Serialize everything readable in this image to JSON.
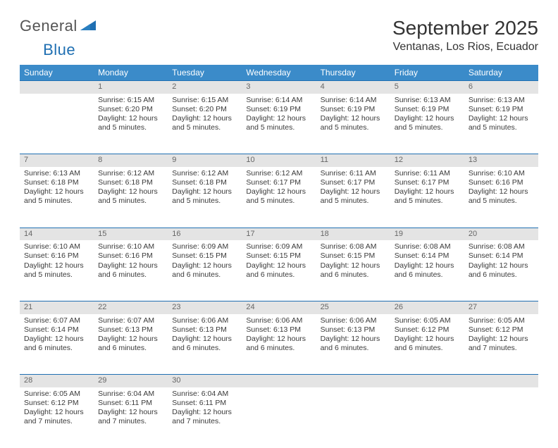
{
  "brand": {
    "word1": "General",
    "word2": "Blue"
  },
  "title": {
    "month": "September 2025",
    "location": "Ventanas, Los Rios, Ecuador"
  },
  "colors": {
    "header_bg": "#3b8bc9",
    "header_text": "#ffffff",
    "daynum_bg": "#e4e4e4",
    "daynum_text": "#666666",
    "row_border": "#1f6fb2",
    "body_text": "#3a3a3a",
    "brand_gray": "#555555",
    "brand_blue": "#1f6fb2"
  },
  "day_headers": [
    "Sunday",
    "Monday",
    "Tuesday",
    "Wednesday",
    "Thursday",
    "Friday",
    "Saturday"
  ],
  "weeks": [
    {
      "nums": [
        "",
        "1",
        "2",
        "3",
        "4",
        "5",
        "6"
      ],
      "cells": [
        null,
        {
          "sunrise": "Sunrise: 6:15 AM",
          "sunset": "Sunset: 6:20 PM",
          "day1": "Daylight: 12 hours",
          "day2": "and 5 minutes."
        },
        {
          "sunrise": "Sunrise: 6:15 AM",
          "sunset": "Sunset: 6:20 PM",
          "day1": "Daylight: 12 hours",
          "day2": "and 5 minutes."
        },
        {
          "sunrise": "Sunrise: 6:14 AM",
          "sunset": "Sunset: 6:19 PM",
          "day1": "Daylight: 12 hours",
          "day2": "and 5 minutes."
        },
        {
          "sunrise": "Sunrise: 6:14 AM",
          "sunset": "Sunset: 6:19 PM",
          "day1": "Daylight: 12 hours",
          "day2": "and 5 minutes."
        },
        {
          "sunrise": "Sunrise: 6:13 AM",
          "sunset": "Sunset: 6:19 PM",
          "day1": "Daylight: 12 hours",
          "day2": "and 5 minutes."
        },
        {
          "sunrise": "Sunrise: 6:13 AM",
          "sunset": "Sunset: 6:19 PM",
          "day1": "Daylight: 12 hours",
          "day2": "and 5 minutes."
        }
      ]
    },
    {
      "nums": [
        "7",
        "8",
        "9",
        "10",
        "11",
        "12",
        "13"
      ],
      "cells": [
        {
          "sunrise": "Sunrise: 6:13 AM",
          "sunset": "Sunset: 6:18 PM",
          "day1": "Daylight: 12 hours",
          "day2": "and 5 minutes."
        },
        {
          "sunrise": "Sunrise: 6:12 AM",
          "sunset": "Sunset: 6:18 PM",
          "day1": "Daylight: 12 hours",
          "day2": "and 5 minutes."
        },
        {
          "sunrise": "Sunrise: 6:12 AM",
          "sunset": "Sunset: 6:18 PM",
          "day1": "Daylight: 12 hours",
          "day2": "and 5 minutes."
        },
        {
          "sunrise": "Sunrise: 6:12 AM",
          "sunset": "Sunset: 6:17 PM",
          "day1": "Daylight: 12 hours",
          "day2": "and 5 minutes."
        },
        {
          "sunrise": "Sunrise: 6:11 AM",
          "sunset": "Sunset: 6:17 PM",
          "day1": "Daylight: 12 hours",
          "day2": "and 5 minutes."
        },
        {
          "sunrise": "Sunrise: 6:11 AM",
          "sunset": "Sunset: 6:17 PM",
          "day1": "Daylight: 12 hours",
          "day2": "and 5 minutes."
        },
        {
          "sunrise": "Sunrise: 6:10 AM",
          "sunset": "Sunset: 6:16 PM",
          "day1": "Daylight: 12 hours",
          "day2": "and 5 minutes."
        }
      ]
    },
    {
      "nums": [
        "14",
        "15",
        "16",
        "17",
        "18",
        "19",
        "20"
      ],
      "cells": [
        {
          "sunrise": "Sunrise: 6:10 AM",
          "sunset": "Sunset: 6:16 PM",
          "day1": "Daylight: 12 hours",
          "day2": "and 5 minutes."
        },
        {
          "sunrise": "Sunrise: 6:10 AM",
          "sunset": "Sunset: 6:16 PM",
          "day1": "Daylight: 12 hours",
          "day2": "and 6 minutes."
        },
        {
          "sunrise": "Sunrise: 6:09 AM",
          "sunset": "Sunset: 6:15 PM",
          "day1": "Daylight: 12 hours",
          "day2": "and 6 minutes."
        },
        {
          "sunrise": "Sunrise: 6:09 AM",
          "sunset": "Sunset: 6:15 PM",
          "day1": "Daylight: 12 hours",
          "day2": "and 6 minutes."
        },
        {
          "sunrise": "Sunrise: 6:08 AM",
          "sunset": "Sunset: 6:15 PM",
          "day1": "Daylight: 12 hours",
          "day2": "and 6 minutes."
        },
        {
          "sunrise": "Sunrise: 6:08 AM",
          "sunset": "Sunset: 6:14 PM",
          "day1": "Daylight: 12 hours",
          "day2": "and 6 minutes."
        },
        {
          "sunrise": "Sunrise: 6:08 AM",
          "sunset": "Sunset: 6:14 PM",
          "day1": "Daylight: 12 hours",
          "day2": "and 6 minutes."
        }
      ]
    },
    {
      "nums": [
        "21",
        "22",
        "23",
        "24",
        "25",
        "26",
        "27"
      ],
      "cells": [
        {
          "sunrise": "Sunrise: 6:07 AM",
          "sunset": "Sunset: 6:14 PM",
          "day1": "Daylight: 12 hours",
          "day2": "and 6 minutes."
        },
        {
          "sunrise": "Sunrise: 6:07 AM",
          "sunset": "Sunset: 6:13 PM",
          "day1": "Daylight: 12 hours",
          "day2": "and 6 minutes."
        },
        {
          "sunrise": "Sunrise: 6:06 AM",
          "sunset": "Sunset: 6:13 PM",
          "day1": "Daylight: 12 hours",
          "day2": "and 6 minutes."
        },
        {
          "sunrise": "Sunrise: 6:06 AM",
          "sunset": "Sunset: 6:13 PM",
          "day1": "Daylight: 12 hours",
          "day2": "and 6 minutes."
        },
        {
          "sunrise": "Sunrise: 6:06 AM",
          "sunset": "Sunset: 6:13 PM",
          "day1": "Daylight: 12 hours",
          "day2": "and 6 minutes."
        },
        {
          "sunrise": "Sunrise: 6:05 AM",
          "sunset": "Sunset: 6:12 PM",
          "day1": "Daylight: 12 hours",
          "day2": "and 6 minutes."
        },
        {
          "sunrise": "Sunrise: 6:05 AM",
          "sunset": "Sunset: 6:12 PM",
          "day1": "Daylight: 12 hours",
          "day2": "and 7 minutes."
        }
      ]
    },
    {
      "nums": [
        "28",
        "29",
        "30",
        "",
        "",
        "",
        ""
      ],
      "cells": [
        {
          "sunrise": "Sunrise: 6:05 AM",
          "sunset": "Sunset: 6:12 PM",
          "day1": "Daylight: 12 hours",
          "day2": "and 7 minutes."
        },
        {
          "sunrise": "Sunrise: 6:04 AM",
          "sunset": "Sunset: 6:11 PM",
          "day1": "Daylight: 12 hours",
          "day2": "and 7 minutes."
        },
        {
          "sunrise": "Sunrise: 6:04 AM",
          "sunset": "Sunset: 6:11 PM",
          "day1": "Daylight: 12 hours",
          "day2": "and 7 minutes."
        },
        null,
        null,
        null,
        null
      ]
    }
  ]
}
